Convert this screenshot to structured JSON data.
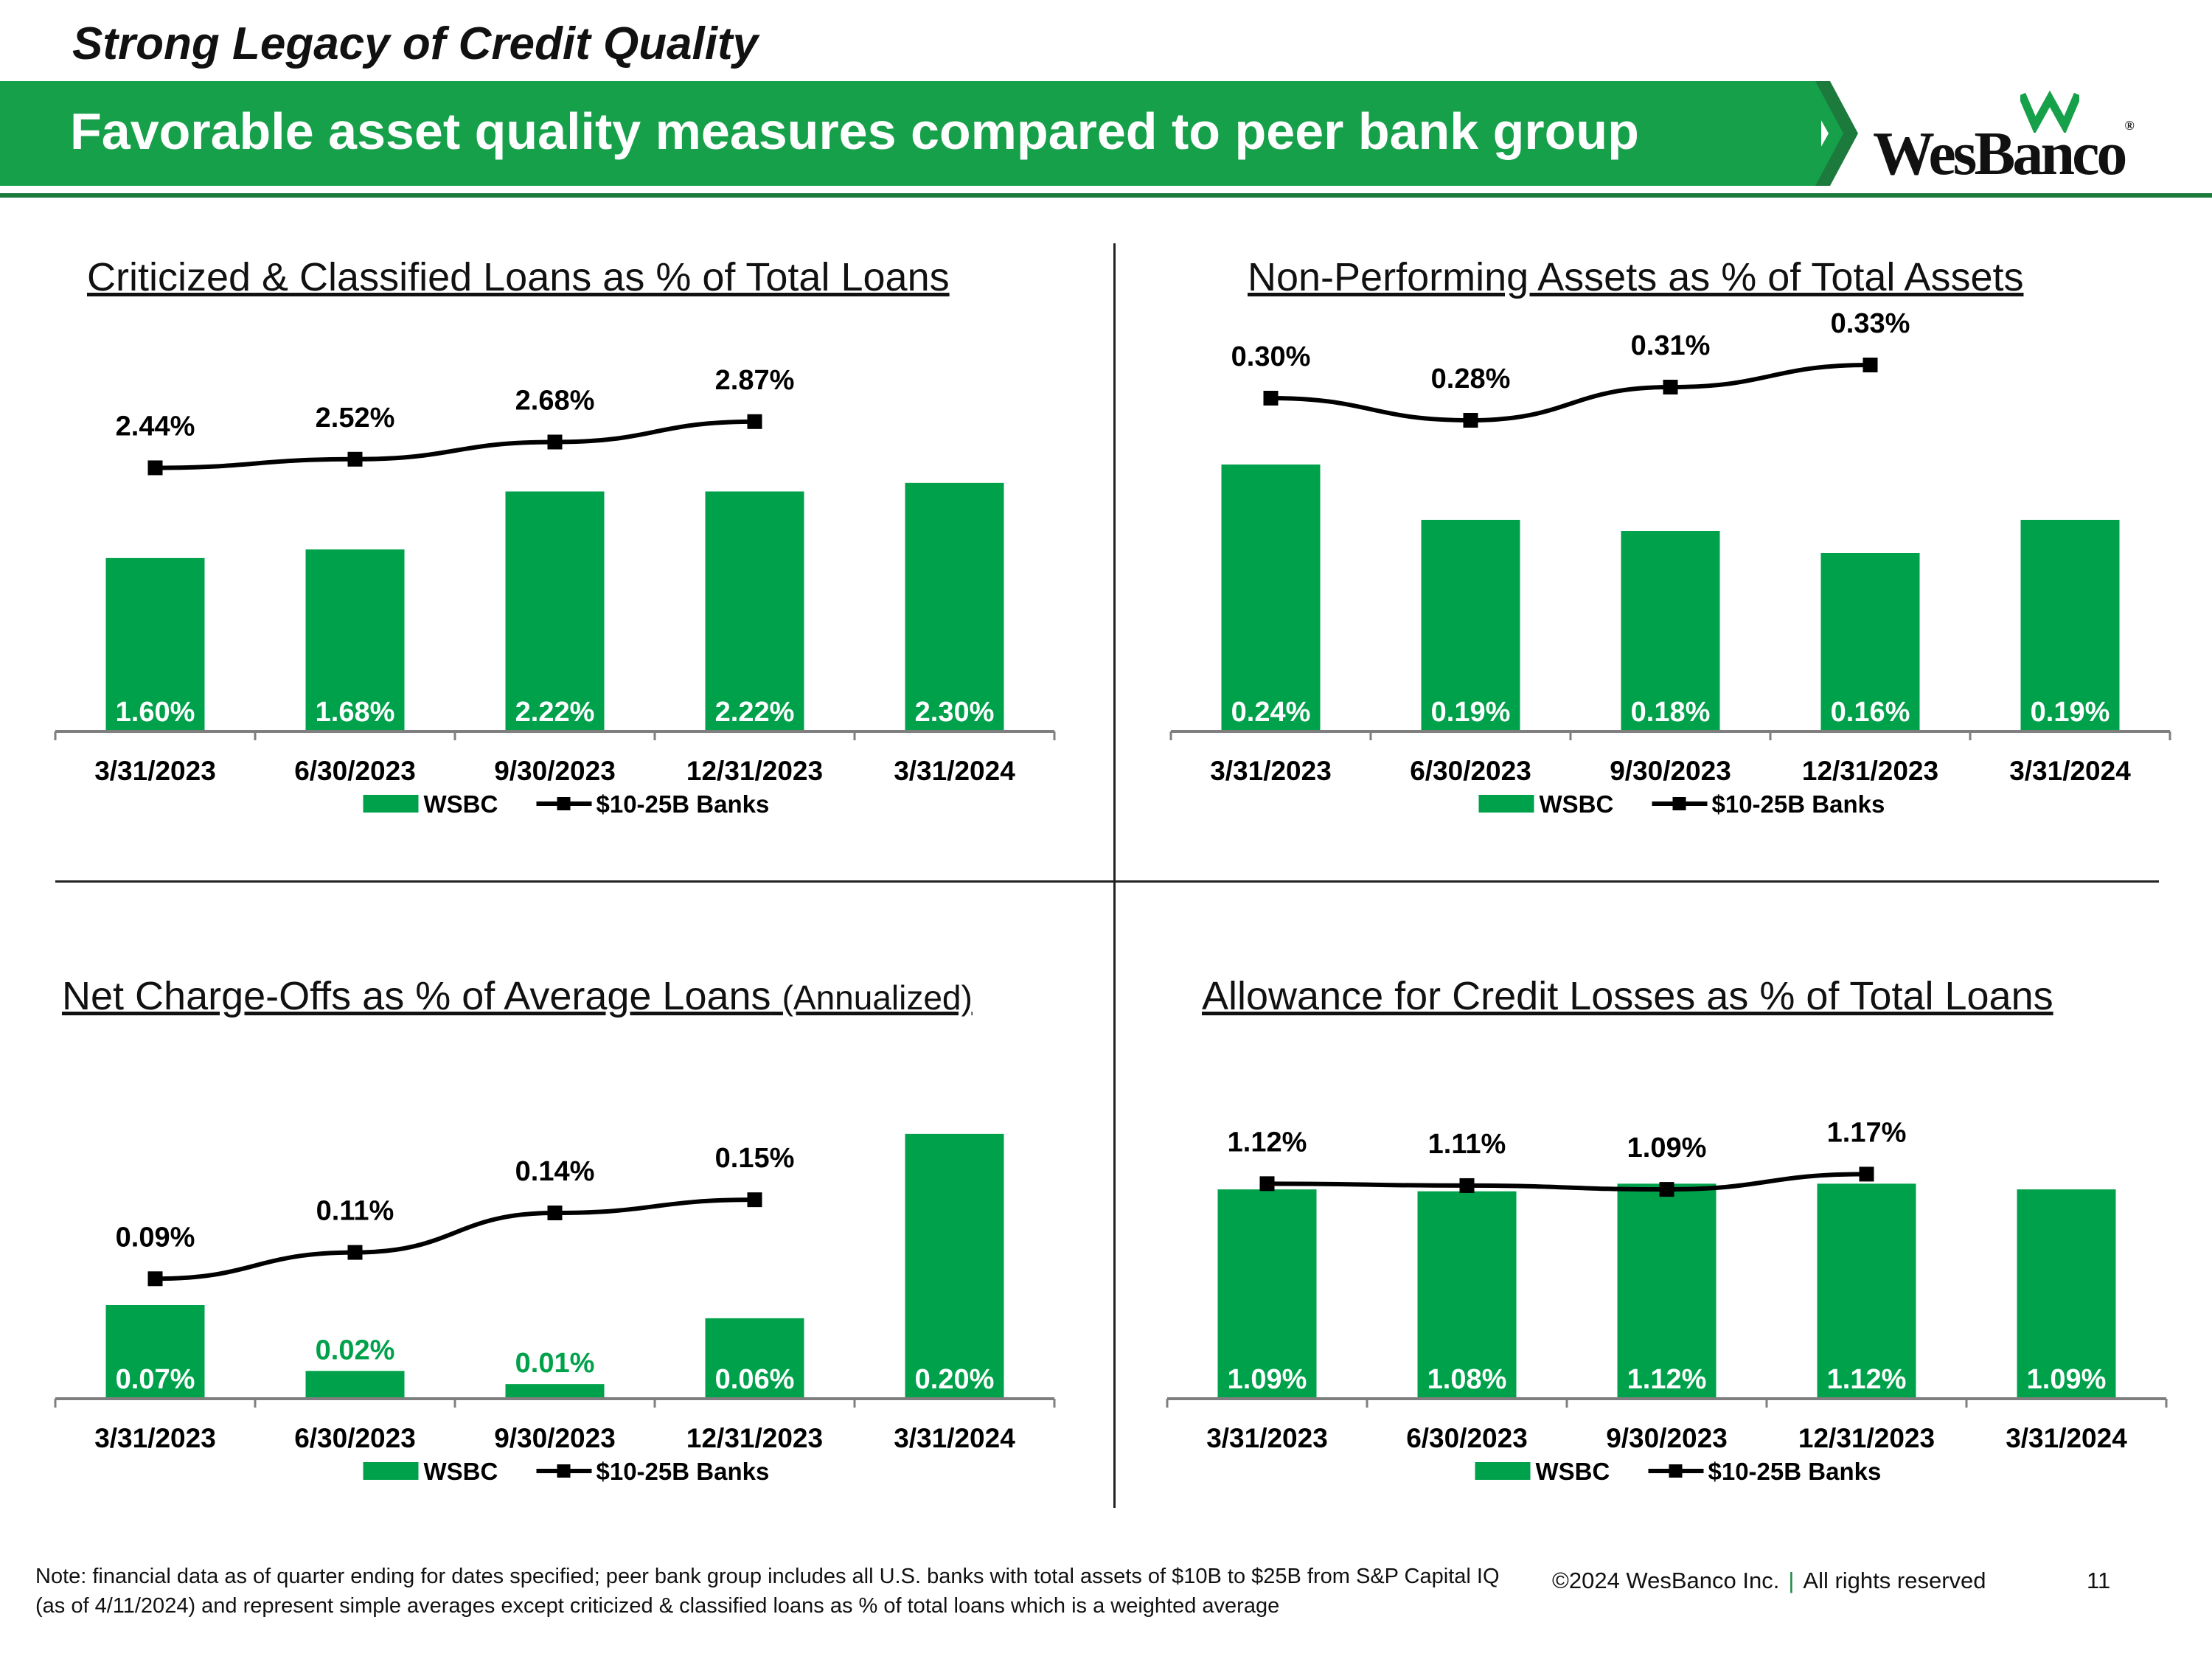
{
  "header": {
    "kicker": "Strong Legacy of Credit Quality",
    "title": "Favorable asset quality measures compared to peer bank group",
    "logo_text": "WesBanco",
    "logo_reg": "®"
  },
  "colors": {
    "brand_green": "#16a04a",
    "bar_green": "#00a14b",
    "line": "#000000",
    "axis": "#7f7f7f"
  },
  "legend": {
    "bar": "WSBC",
    "line": "$10-25B Banks"
  },
  "chart_data": [
    {
      "type": "bar",
      "title": "Criticized & Classified Loans as % of Total Loans",
      "subtitle": "",
      "categories": [
        "3/31/2023",
        "6/30/2023",
        "9/30/2023",
        "12/31/2023",
        "3/31/2024"
      ],
      "series": [
        {
          "name": "WSBC",
          "kind": "bar",
          "values": [
            1.6,
            1.68,
            2.22,
            2.22,
            2.3
          ],
          "labels": [
            "1.60%",
            "1.68%",
            "2.22%",
            "2.22%",
            "2.30%"
          ]
        },
        {
          "name": "$10-25B Banks",
          "kind": "line",
          "values": [
            2.44,
            2.52,
            2.68,
            2.87,
            null
          ],
          "labels": [
            "2.44%",
            "2.52%",
            "2.68%",
            "2.87%",
            ""
          ]
        }
      ],
      "ylim": [
        0,
        3.5
      ],
      "grid": false,
      "legend": "bottom"
    },
    {
      "type": "bar",
      "title": "Non-Performing Assets as % of Total Assets",
      "subtitle": "",
      "categories": [
        "3/31/2023",
        "6/30/2023",
        "9/30/2023",
        "12/31/2023",
        "3/31/2024"
      ],
      "series": [
        {
          "name": "WSBC",
          "kind": "bar",
          "values": [
            0.24,
            0.19,
            0.18,
            0.16,
            0.19
          ],
          "labels": [
            "0.24%",
            "0.19%",
            "0.18%",
            "0.16%",
            "0.19%"
          ]
        },
        {
          "name": "$10-25B Banks",
          "kind": "line",
          "values": [
            0.3,
            0.28,
            0.31,
            0.33,
            null
          ],
          "labels": [
            "0.30%",
            "0.28%",
            "0.31%",
            "0.33%",
            ""
          ]
        }
      ],
      "ylim": [
        0,
        0.38
      ],
      "grid": false,
      "legend": "bottom"
    },
    {
      "type": "bar",
      "title": "Net Charge-Offs as % of Average Loans",
      "subtitle": "(Annualized)",
      "categories": [
        "3/31/2023",
        "6/30/2023",
        "9/30/2023",
        "12/31/2023",
        "3/31/2024"
      ],
      "series": [
        {
          "name": "WSBC",
          "kind": "bar",
          "values": [
            0.07,
            0.02,
            0.01,
            0.06,
            0.2
          ],
          "labels": [
            "0.07%",
            "0.02%",
            "0.01%",
            "0.06%",
            "0.20%"
          ]
        },
        {
          "name": "$10-25B Banks",
          "kind": "line",
          "values": [
            0.09,
            0.11,
            0.14,
            0.15,
            null
          ],
          "labels": [
            "0.09%",
            "0.11%",
            "0.14%",
            "0.15%",
            ""
          ]
        }
      ],
      "ylim": [
        0,
        0.21
      ],
      "grid": false,
      "legend": "bottom"
    },
    {
      "type": "bar",
      "title": "Allowance for Credit Losses as % of Total Loans",
      "subtitle": "",
      "categories": [
        "3/31/2023",
        "6/30/2023",
        "9/30/2023",
        "12/31/2023",
        "3/31/2024"
      ],
      "series": [
        {
          "name": "WSBC",
          "kind": "bar",
          "values": [
            1.09,
            1.08,
            1.12,
            1.12,
            1.09
          ],
          "labels": [
            "1.09%",
            "1.08%",
            "1.12%",
            "1.12%",
            "1.09%"
          ]
        },
        {
          "name": "$10-25B Banks",
          "kind": "line",
          "values": [
            1.12,
            1.11,
            1.09,
            1.17,
            null
          ],
          "labels": [
            "1.12%",
            "1.11%",
            "1.09%",
            "1.17%",
            ""
          ]
        }
      ],
      "ylim": [
        0,
        1.45
      ],
      "grid": false,
      "legend": "bottom"
    }
  ],
  "footer": {
    "note": "Note: financial data as of quarter ending for dates specified; peer bank group includes all U.S. banks with total assets of $10B to $25B from S&P Capital IQ (as of 4/11/2024) and represent simple averages except criticized & classified loans as % of total loans which is a weighted average",
    "copyright": "©2024 WesBanco Inc.",
    "separator": "|",
    "rights": "All rights reserved",
    "page": "11"
  }
}
